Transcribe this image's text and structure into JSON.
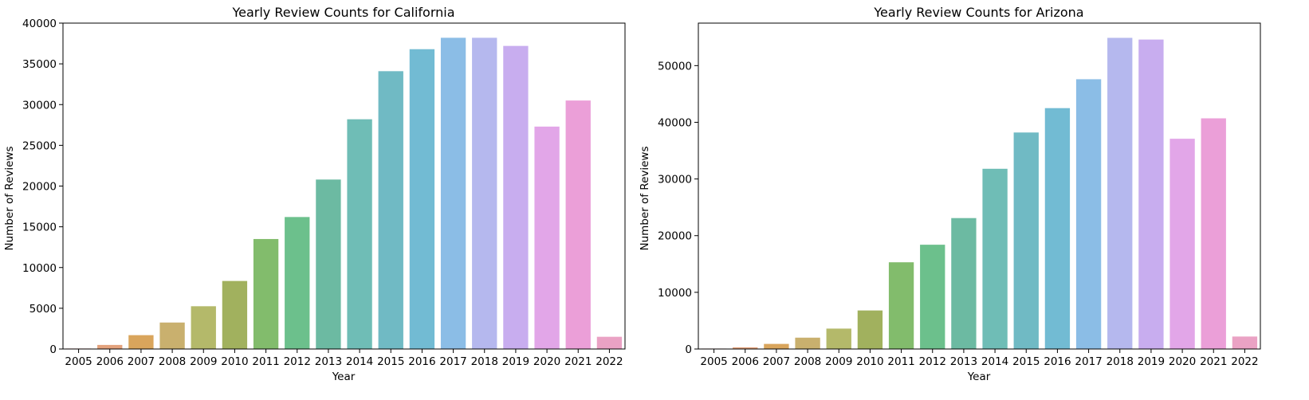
{
  "chart_data": [
    {
      "type": "bar",
      "title": "Yearly Review Counts for California",
      "xlabel": "Year",
      "ylabel": "Number of Reviews",
      "ylim": [
        0,
        40000
      ],
      "yticks": [
        0,
        5000,
        10000,
        15000,
        20000,
        25000,
        30000,
        35000,
        40000
      ],
      "categories": [
        "2005",
        "2006",
        "2007",
        "2008",
        "2009",
        "2010",
        "2011",
        "2012",
        "2013",
        "2014",
        "2015",
        "2016",
        "2017",
        "2018",
        "2019",
        "2020",
        "2021",
        "2022"
      ],
      "values": [
        60,
        500,
        1700,
        3250,
        5250,
        8350,
        13500,
        16200,
        20800,
        28200,
        34100,
        36800,
        38200,
        38200,
        37200,
        27300,
        30500,
        1500
      ],
      "grid": false,
      "legend": "none"
    },
    {
      "type": "bar",
      "title": "Yearly Review Counts for Arizona",
      "xlabel": "Year",
      "ylabel": "Number of Reviews",
      "ylim": [
        0,
        57500
      ],
      "yticks": [
        0,
        10000,
        20000,
        30000,
        40000,
        50000
      ],
      "categories": [
        "2005",
        "2006",
        "2007",
        "2008",
        "2009",
        "2010",
        "2011",
        "2012",
        "2013",
        "2014",
        "2015",
        "2016",
        "2017",
        "2018",
        "2019",
        "2020",
        "2021",
        "2022"
      ],
      "values": [
        80,
        300,
        900,
        2000,
        3600,
        6800,
        15300,
        18400,
        23100,
        31800,
        38200,
        42500,
        47600,
        54900,
        54600,
        37100,
        40700,
        2200
      ],
      "grid": false,
      "legend": "none"
    }
  ],
  "palette": [
    "#e28d8d",
    "#e3a27d",
    "#d9a55c",
    "#c9b06e",
    "#b4b96a",
    "#a1b15e",
    "#82bc6c",
    "#6cc08c",
    "#6cbaa2",
    "#6fbdb6",
    "#70bac4",
    "#72bbd3",
    "#8bbde6",
    "#b5b8ee",
    "#c8adef",
    "#e2a6e8",
    "#eb9fd8",
    "#eaa2c4"
  ]
}
